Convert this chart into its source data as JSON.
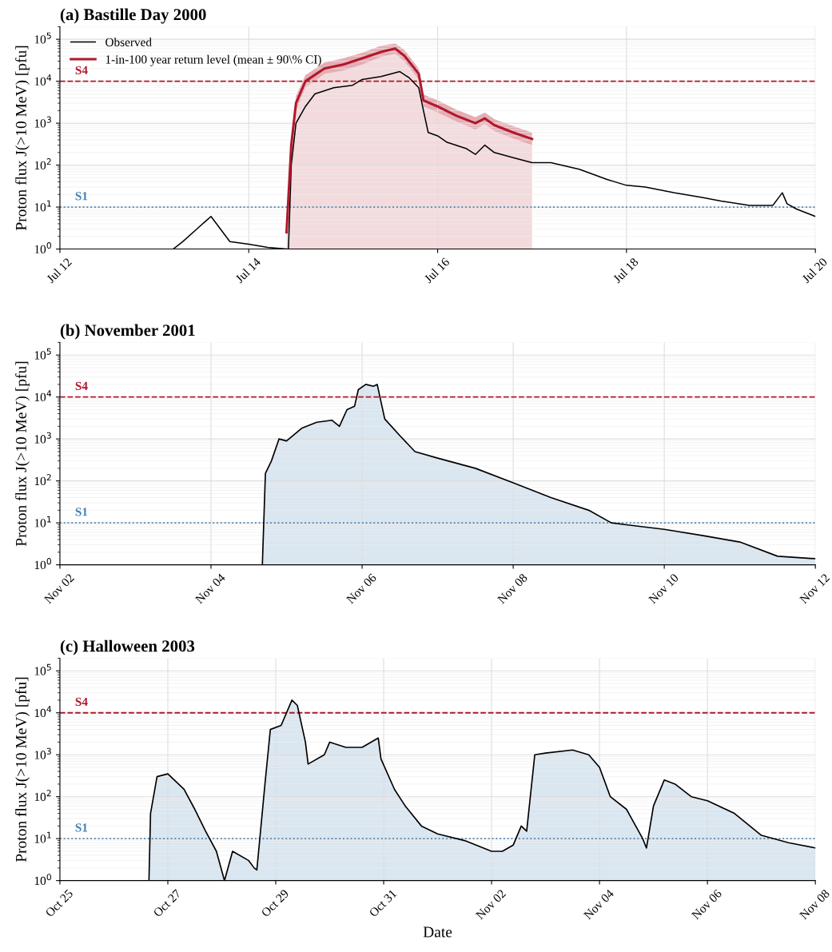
{
  "chart_data": [
    {
      "type": "line",
      "title": "(a) Bastille Day 2000",
      "ylabel": "Proton flux J(>10 MeV) [pfu]",
      "log": true,
      "grid": true,
      "legend": "top left",
      "xlim": [
        "2000-07-12T00:00",
        "2000-07-20T00:00"
      ],
      "xticks": [
        {
          "value": "2000-07-12T00:00",
          "label": "Jul 12"
        },
        {
          "value": "2000-07-14T00:00",
          "label": "Jul 14"
        },
        {
          "value": "2000-07-16T00:00",
          "label": "Jul 16"
        },
        {
          "value": "2000-07-18T00:00",
          "label": "Jul 18"
        },
        {
          "value": "2000-07-20T00:00",
          "label": "Jul 20"
        }
      ],
      "ylim": [
        1,
        200000
      ],
      "yticks": [
        {
          "value": 1,
          "label": "10$^{0}$"
        },
        {
          "value": 10,
          "label": "10$^{1}$"
        },
        {
          "value": 100,
          "label": "10$^{2}$"
        },
        {
          "value": 1000,
          "label": "10$^{3}$"
        },
        {
          "value": 10000,
          "label": "10$^{4}$"
        },
        {
          "value": 100000,
          "label": "10$^{5}$"
        }
      ],
      "ref_lines": [
        {
          "axis": "y",
          "value": 10000,
          "label": "S4",
          "color": "#b2182b",
          "line_style": "dashed"
        },
        {
          "axis": "y",
          "value": 10,
          "label": "S1",
          "color": "#4682b4",
          "line_style": "dotted"
        }
      ],
      "series": [
        {
          "name": "Observed",
          "color": "#000000",
          "x": [
            "2000-07-13T04:48",
            "2000-07-13T07:12",
            "2000-07-13T10:48",
            "2000-07-13T14:24",
            "2000-07-13T16:48",
            "2000-07-13T19:12",
            "2000-07-14T00:00",
            "2000-07-14T04:48",
            "2000-07-14T09:36",
            "2000-07-14T10:05",
            "2000-07-14T10:48",
            "2000-07-14T12:00",
            "2000-07-14T14:24",
            "2000-07-14T16:48",
            "2000-07-14T21:36",
            "2000-07-15T02:24",
            "2000-07-15T04:48",
            "2000-07-15T09:36",
            "2000-07-15T14:24",
            "2000-07-15T16:48",
            "2000-07-15T19:12",
            "2000-07-15T20:24",
            "2000-07-15T21:36",
            "2000-07-16T00:00",
            "2000-07-16T02:24",
            "2000-07-16T07:12",
            "2000-07-16T09:36",
            "2000-07-16T12:00",
            "2000-07-16T14:24",
            "2000-07-16T19:12",
            "2000-07-17T00:00",
            "2000-07-17T04:48",
            "2000-07-17T12:00",
            "2000-07-17T19:12",
            "2000-07-18T00:00",
            "2000-07-18T04:48",
            "2000-07-18T12:00",
            "2000-07-18T19:12",
            "2000-07-19T00:00",
            "2000-07-19T07:12",
            "2000-07-19T13:12",
            "2000-07-19T15:36",
            "2000-07-19T16:48",
            "2000-07-19T19:12",
            "2000-07-20T00:00"
          ],
          "values": [
            1,
            1.5,
            3,
            6,
            3,
            1.5,
            1.3,
            1.1,
            1,
            1,
            100,
            1000,
            2500,
            5000,
            7000,
            8000,
            11000,
            13000,
            17000,
            12000,
            7000,
            2000,
            600,
            500,
            350,
            250,
            180,
            300,
            200,
            150,
            115,
            115,
            80,
            45,
            33,
            30,
            22,
            17,
            14,
            11,
            11,
            22,
            12,
            9,
            6
          ]
        },
        {
          "name": "1-in-100 year return level (mean ± 90\\% CI)",
          "color": "#b2182b",
          "x": [
            "2000-07-14T09:36",
            "2000-07-14T10:48",
            "2000-07-14T12:00",
            "2000-07-14T14:24",
            "2000-07-14T19:12",
            "2000-07-15T00:00",
            "2000-07-15T04:48",
            "2000-07-15T09:36",
            "2000-07-15T13:12",
            "2000-07-15T15:36",
            "2000-07-15T19:12",
            "2000-07-15T20:24",
            "2000-07-16T00:00",
            "2000-07-16T04:48",
            "2000-07-16T09:36",
            "2000-07-16T12:00",
            "2000-07-16T14:24",
            "2000-07-16T19:12",
            "2000-07-17T00:00"
          ],
          "values": [
            2.5,
            300,
            3000,
            10000,
            20000,
            25000,
            35000,
            50000,
            60000,
            40000,
            15000,
            3500,
            2500,
            1500,
            1000,
            1300,
            900,
            600,
            420
          ],
          "lower": [
            2,
            200,
            2000,
            7000,
            15000,
            18000,
            25000,
            38000,
            45000,
            30000,
            11000,
            2500,
            1800,
            1100,
            700,
            950,
            650,
            430,
            300
          ],
          "upper": [
            3.5,
            450,
            4500,
            14000,
            28000,
            35000,
            48000,
            70000,
            80000,
            55000,
            20000,
            4800,
            3500,
            2100,
            1400,
            1800,
            1250,
            850,
            600
          ]
        }
      ]
    },
    {
      "type": "area",
      "title": "(b) November 2001",
      "ylabel": "Proton flux J(>10 MeV) [pfu]",
      "log": true,
      "grid": true,
      "xlim": [
        "2001-11-02T00:00",
        "2001-11-12T00:00"
      ],
      "xticks": [
        {
          "value": "2001-11-02T00:00",
          "label": "Nov 02"
        },
        {
          "value": "2001-11-04T00:00",
          "label": "Nov 04"
        },
        {
          "value": "2001-11-06T00:00",
          "label": "Nov 06"
        },
        {
          "value": "2001-11-08T00:00",
          "label": "Nov 08"
        },
        {
          "value": "2001-11-10T00:00",
          "label": "Nov 10"
        },
        {
          "value": "2001-11-12T00:00",
          "label": "Nov 12"
        }
      ],
      "ylim": [
        1,
        200000
      ],
      "yticks": [
        {
          "value": 1,
          "label": "10$^{0}$"
        },
        {
          "value": 10,
          "label": "10$^{1}$"
        },
        {
          "value": 100,
          "label": "10$^{2}$"
        },
        {
          "value": 1000,
          "label": "10$^{3}$"
        },
        {
          "value": 10000,
          "label": "10$^{4}$"
        },
        {
          "value": 100000,
          "label": "10$^{5}$"
        }
      ],
      "ref_lines": [
        {
          "axis": "y",
          "value": 10000,
          "label": "S4",
          "color": "#b2182b",
          "line_style": "dashed"
        },
        {
          "axis": "y",
          "value": 10,
          "label": "S1",
          "color": "#4682b4",
          "line_style": "dotted"
        }
      ],
      "series": [
        {
          "color": "#000000",
          "x": [
            "2001-11-04T16:19",
            "2001-11-04T17:17",
            "2001-11-04T19:12",
            "2001-11-04T21:36",
            "2001-11-05T00:00",
            "2001-11-05T04:48",
            "2001-11-05T09:36",
            "2001-11-05T14:24",
            "2001-11-05T16:48",
            "2001-11-05T19:12",
            "2001-11-05T21:36",
            "2001-11-05T22:48",
            "2001-11-06T01:12",
            "2001-11-06T03:36",
            "2001-11-06T04:48",
            "2001-11-06T07:12",
            "2001-11-06T12:00",
            "2001-11-06T16:48",
            "2001-11-07T00:00",
            "2001-11-07T12:00",
            "2001-11-08T00:00",
            "2001-11-08T12:00",
            "2001-11-09T00:00",
            "2001-11-09T07:12",
            "2001-11-09T12:00",
            "2001-11-10T00:00",
            "2001-11-10T12:00",
            "2001-11-11T00:00",
            "2001-11-11T12:00",
            "2001-11-12T00:00"
          ],
          "values": [
            1,
            150,
            300,
            1000,
            900,
            1800,
            2500,
            2800,
            2000,
            5000,
            6000,
            15000,
            20000,
            18000,
            20000,
            3000,
            1200,
            500,
            350,
            200,
            90,
            40,
            20,
            10,
            9,
            7,
            5,
            3.5,
            1.6,
            1.4
          ]
        }
      ]
    },
    {
      "type": "area",
      "title": "(c) Halloween 2003",
      "xlabel": "Date",
      "ylabel": "Proton flux J(>10 MeV) [pfu]",
      "log": true,
      "grid": true,
      "xlim": [
        "2003-10-25T00:00",
        "2003-11-08T00:00"
      ],
      "xticks": [
        {
          "value": "2003-10-25T00:00",
          "label": "Oct 25"
        },
        {
          "value": "2003-10-27T00:00",
          "label": "Oct 27"
        },
        {
          "value": "2003-10-29T00:00",
          "label": "Oct 29"
        },
        {
          "value": "2003-10-31T00:00",
          "label": "Oct 31"
        },
        {
          "value": "2003-11-02T00:00",
          "label": "Nov 02"
        },
        {
          "value": "2003-11-04T00:00",
          "label": "Nov 04"
        },
        {
          "value": "2003-11-06T00:00",
          "label": "Nov 06"
        },
        {
          "value": "2003-11-08T00:00",
          "label": "Nov 08"
        }
      ],
      "ylim": [
        1,
        200000
      ],
      "yticks": [
        {
          "value": 1,
          "label": "10$^{0}$"
        },
        {
          "value": 10,
          "label": "10$^{1}$"
        },
        {
          "value": 100,
          "label": "10$^{2}$"
        },
        {
          "value": 1000,
          "label": "10$^{3}$"
        },
        {
          "value": 10000,
          "label": "10$^{4}$"
        },
        {
          "value": 100000,
          "label": "10$^{5}$"
        }
      ],
      "ref_lines": [
        {
          "axis": "y",
          "value": 10000,
          "label": "S4",
          "color": "#b2182b",
          "line_style": "dashed"
        },
        {
          "axis": "y",
          "value": 10,
          "label": "S1",
          "color": "#4682b4",
          "line_style": "dotted"
        }
      ],
      "series": [
        {
          "color": "#000000",
          "x": [
            "2003-10-26T15:36",
            "2003-10-26T16:19",
            "2003-10-26T19:12",
            "2003-10-27T00:00",
            "2003-10-27T07:12",
            "2003-10-27T12:00",
            "2003-10-27T16:48",
            "2003-10-27T21:36",
            "2003-10-28T01:12",
            "2003-10-28T04:48",
            "2003-10-28T12:00",
            "2003-10-28T14:24",
            "2003-10-28T15:36",
            "2003-10-28T19:12",
            "2003-10-28T21:36",
            "2003-10-29T02:24",
            "2003-10-29T07:12",
            "2003-10-29T09:36",
            "2003-10-29T13:12",
            "2003-10-29T14:24",
            "2003-10-29T21:36",
            "2003-10-30T00:00",
            "2003-10-30T07:12",
            "2003-10-30T14:24",
            "2003-10-30T21:36",
            "2003-10-30T22:48",
            "2003-10-31T04:48",
            "2003-10-31T09:36",
            "2003-10-31T16:48",
            "2003-11-01T00:00",
            "2003-11-01T12:00",
            "2003-11-02T00:00",
            "2003-11-02T04:48",
            "2003-11-02T09:36",
            "2003-11-02T13:12",
            "2003-11-02T15:36",
            "2003-11-02T19:12",
            "2003-11-03T00:00",
            "2003-11-03T12:00",
            "2003-11-03T19:12",
            "2003-11-04T00:00",
            "2003-11-04T04:48",
            "2003-11-04T12:00",
            "2003-11-04T19:12",
            "2003-11-04T20:53",
            "2003-11-05T00:00",
            "2003-11-05T04:48",
            "2003-11-05T09:36",
            "2003-11-05T16:48",
            "2003-11-06T00:00",
            "2003-11-06T12:00",
            "2003-11-07T00:00",
            "2003-11-07T12:00",
            "2003-11-08T00:00"
          ],
          "values": [
            1,
            40,
            300,
            350,
            150,
            50,
            15,
            5,
            1,
            5,
            3,
            2,
            1.8,
            200,
            4000,
            5000,
            20000,
            15000,
            2000,
            600,
            1000,
            2000,
            1500,
            1500,
            2500,
            800,
            150,
            60,
            20,
            13,
            9,
            5,
            5,
            7,
            20,
            15,
            1000,
            1100,
            1300,
            1000,
            500,
            100,
            50,
            10,
            6,
            60,
            250,
            200,
            100,
            80,
            40,
            12,
            8,
            6
          ]
        }
      ]
    }
  ]
}
